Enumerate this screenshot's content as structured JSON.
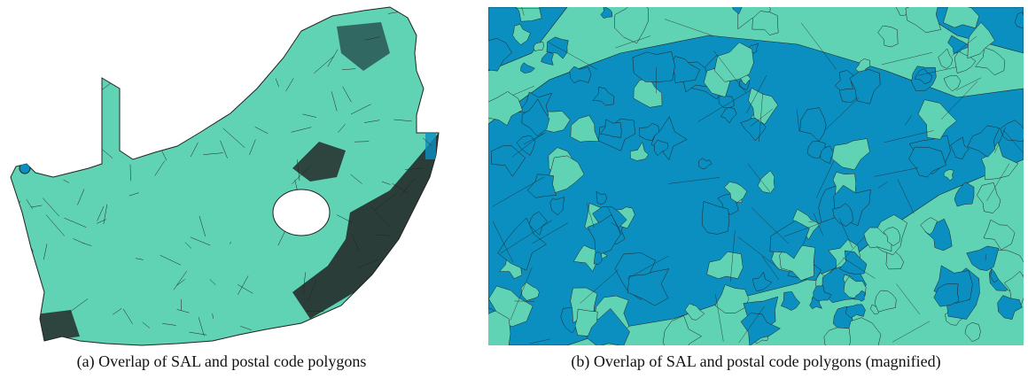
{
  "figures": [
    {
      "caption": "(a) Overlap of SAL and postal code polygons"
    },
    {
      "caption": "(b) Overlap of SAL and postal code polygons (magnified)"
    }
  ]
}
